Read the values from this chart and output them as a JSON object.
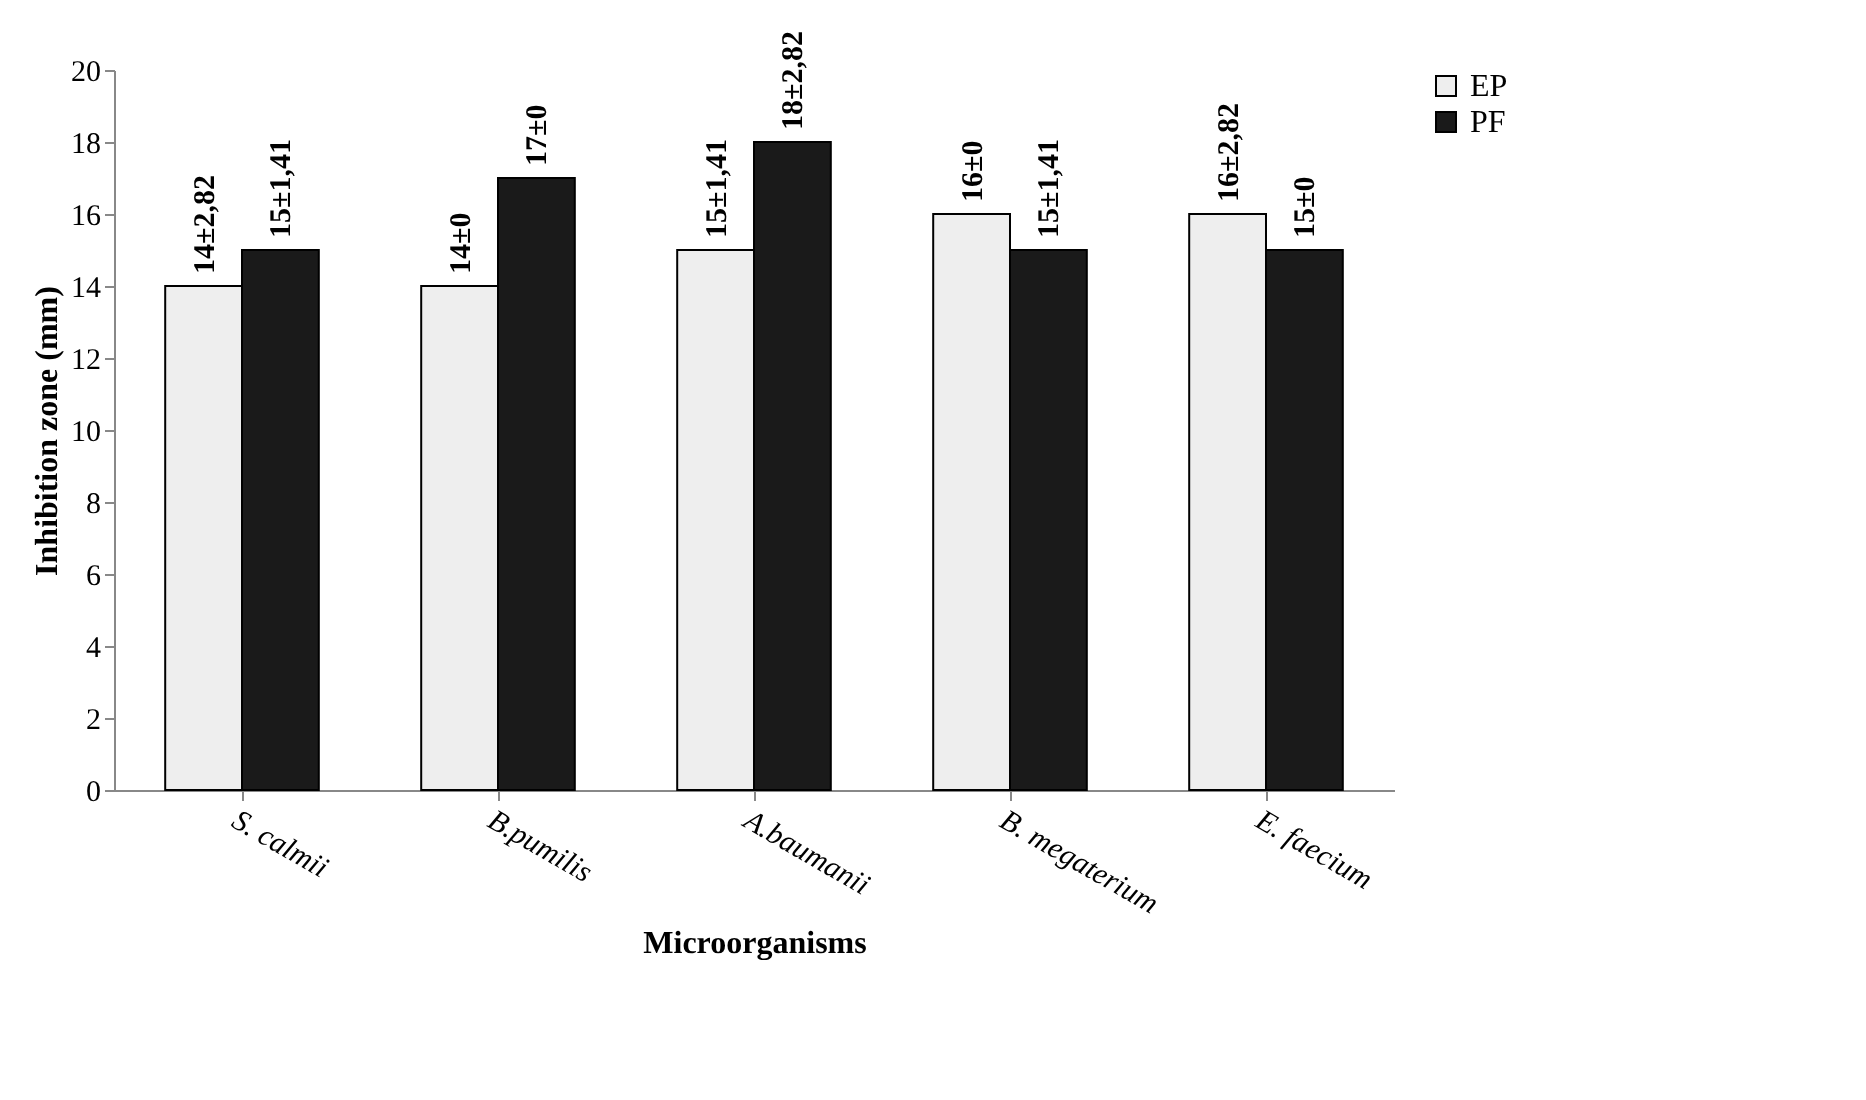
{
  "chart_data": {
    "type": "bar",
    "xlabel": "Microorganisms",
    "ylabel": "Inhibition zone (mm)",
    "categories": [
      "S. calmii",
      "B.pumilis",
      "A.baumanii",
      "B. megaterium",
      "E. faecium"
    ],
    "series": [
      {
        "name": "EP",
        "color": "#eeeeee",
        "values": [
          14,
          14,
          15,
          16,
          16
        ],
        "value_labels": [
          "14±2,82",
          "14±0",
          "15±1,41",
          "16±0",
          "16±2,82"
        ]
      },
      {
        "name": "PF",
        "color": "#1a1a1a",
        "values": [
          15,
          17,
          18,
          15,
          15
        ],
        "value_labels": [
          "15±1,41",
          "17±0",
          "18±2,82",
          "15±1,41",
          "15±0"
        ]
      }
    ],
    "ylim": [
      0,
      20
    ],
    "yticks": [
      0,
      2,
      4,
      6,
      8,
      10,
      12,
      14,
      16,
      18,
      20
    ],
    "legend": "right"
  }
}
